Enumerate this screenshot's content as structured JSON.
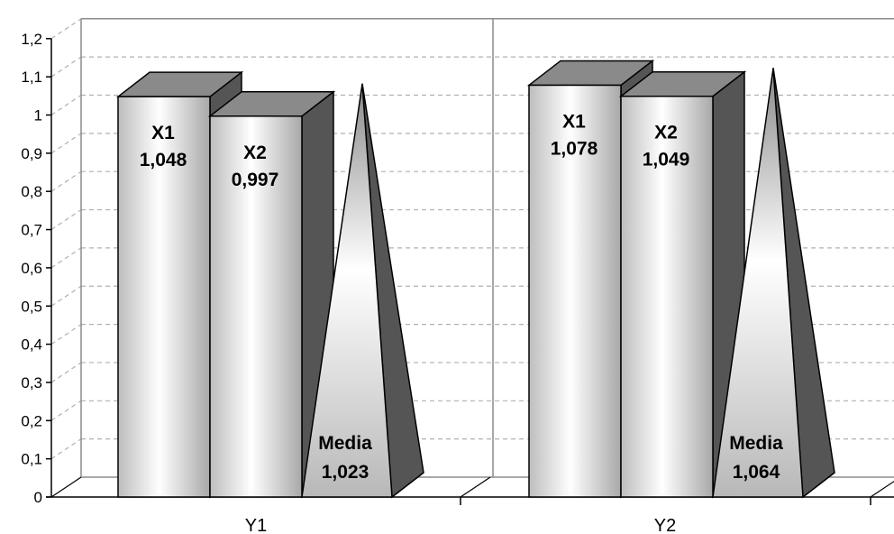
{
  "chart_data": {
    "type": "bar",
    "title": "",
    "xlabel": "",
    "ylabel": "",
    "categories": [
      "Y1",
      "Y2"
    ],
    "ylim": [
      0,
      1.2
    ],
    "yticks": [
      "0",
      "0,1",
      "0,2",
      "0,3",
      "0,4",
      "0,5",
      "0,6",
      "0,7",
      "0,8",
      "0,9",
      "1",
      "1,1",
      "1,2"
    ],
    "grid": true,
    "series": [
      {
        "name": "X1",
        "shape": "bar",
        "values": [
          1.048,
          1.078
        ],
        "labels": [
          "1,048",
          "1,078"
        ]
      },
      {
        "name": "X2",
        "shape": "bar",
        "values": [
          0.997,
          1.049
        ],
        "labels": [
          "0,997",
          "1,049"
        ]
      },
      {
        "name": "Media",
        "shape": "pyramid",
        "values": [
          1.023,
          1.064
        ],
        "labels": [
          "1,023",
          "1,064"
        ]
      }
    ],
    "colors": {
      "bar_light": "#ffffff",
      "bar_mid": "#d0d0d0",
      "bar_dark": "#8c8c8c",
      "side": "#555555",
      "top": "#8a8a8a",
      "grid": "#b0b0b0"
    }
  }
}
